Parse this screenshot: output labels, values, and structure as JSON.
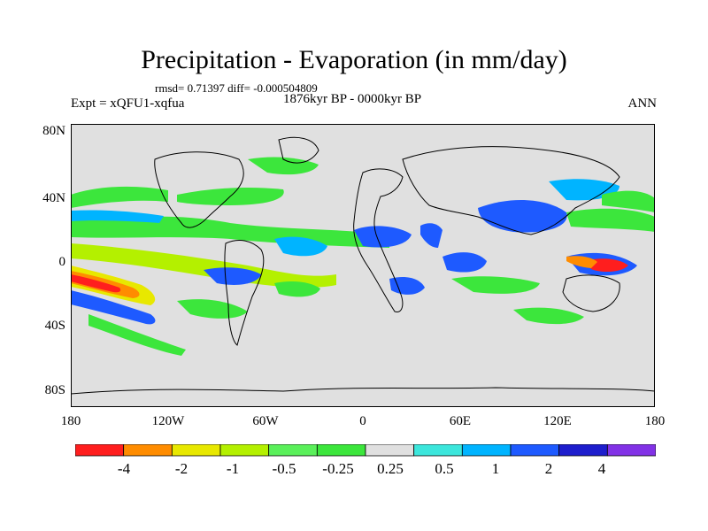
{
  "title": "Precipitation - Evaporation (in mm/day)",
  "stats_line": "rmsd= 0.71397 diff= -0.000504809",
  "experiment": "Expt = xQFU1-xqfua",
  "period": "1876kyr BP - 0000kyr BP",
  "season": "ANN",
  "lat_labels": [
    "80N",
    "40N",
    "0",
    "40S",
    "80S"
  ],
  "lon_labels": [
    "180",
    "120W",
    "60W",
    "0",
    "60E",
    "120E",
    "180"
  ],
  "colorbar": {
    "labels": [
      "-4",
      "-2",
      "-1",
      "-0.5",
      "-0.25",
      "0.25",
      "0.5",
      "1",
      "2",
      "4"
    ],
    "colors": [
      "#ff1e1e",
      "#ff8c00",
      "#e8e800",
      "#b4f000",
      "#5af05a",
      "#3ce63c",
      "#e0e0e0",
      "#3ce6dc",
      "#00b4ff",
      "#1e5aff",
      "#1e1ecd",
      "#8232e6"
    ]
  },
  "map_colors": {
    "land_bg": "#e0e0e0",
    "coast": "#000000"
  }
}
